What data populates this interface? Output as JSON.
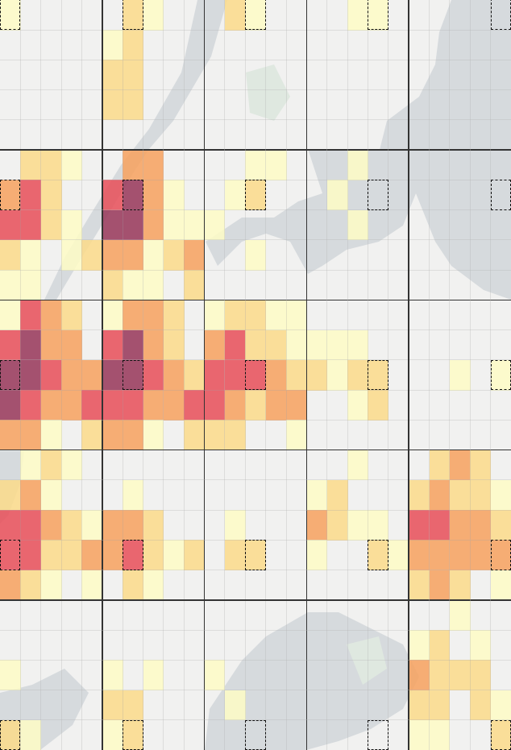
{
  "map": {
    "grid_size": 25,
    "block_size": 5,
    "palette": {
      "0": "transparent",
      "1": "#fdfbc6",
      "2": "#fbdb8c",
      "3": "#f6a362",
      "4": "#e7525c",
      "5": "#983a5c"
    },
    "land_color": "#f1f1f0",
    "water_color": "#d6dadd",
    "highlighted_cells": [
      [
        0,
        0
      ],
      [
        6,
        6
      ],
      [
        12,
        12
      ],
      [
        18,
        18
      ],
      [
        24,
        24
      ],
      [
        0,
        6
      ],
      [
        0,
        12
      ],
      [
        0,
        18
      ],
      [
        0,
        24
      ],
      [
        6,
        0
      ],
      [
        6,
        12
      ],
      [
        6,
        18
      ],
      [
        6,
        24
      ],
      [
        12,
        0
      ],
      [
        12,
        6
      ],
      [
        12,
        18
      ],
      [
        12,
        24
      ],
      [
        18,
        0
      ],
      [
        18,
        6
      ],
      [
        18,
        12
      ],
      [
        18,
        24
      ],
      [
        24,
        0
      ],
      [
        24,
        6
      ],
      [
        24,
        12
      ],
      [
        24,
        18
      ]
    ],
    "intensity": [
      [
        1,
        0,
        0,
        0,
        0,
        0,
        2,
        1,
        0,
        0,
        0,
        2,
        1,
        0,
        0,
        0,
        0,
        1,
        1,
        0,
        0,
        0,
        0,
        0,
        0
      ],
      [
        0,
        0,
        0,
        0,
        0,
        1,
        2,
        0,
        0,
        0,
        0,
        0,
        0,
        0,
        0,
        0,
        0,
        0,
        0,
        0,
        0,
        0,
        0,
        0,
        0
      ],
      [
        0,
        0,
        0,
        0,
        0,
        2,
        2,
        0,
        0,
        0,
        0,
        0,
        0,
        0,
        0,
        0,
        0,
        0,
        0,
        0,
        0,
        0,
        0,
        0,
        0
      ],
      [
        0,
        0,
        0,
        0,
        0,
        2,
        2,
        0,
        0,
        0,
        0,
        0,
        0,
        0,
        0,
        0,
        0,
        0,
        0,
        0,
        0,
        0,
        0,
        0,
        0
      ],
      [
        0,
        0,
        0,
        0,
        0,
        0,
        0,
        0,
        0,
        0,
        0,
        0,
        0,
        0,
        0,
        0,
        0,
        0,
        0,
        0,
        0,
        0,
        0,
        0,
        0
      ],
      [
        0,
        2,
        2,
        1,
        0,
        0,
        3,
        3,
        0,
        0,
        0,
        0,
        1,
        1,
        0,
        0,
        0,
        1,
        0,
        0,
        0,
        0,
        0,
        0,
        0
      ],
      [
        3,
        4,
        2,
        0,
        0,
        4,
        5,
        3,
        1,
        0,
        0,
        1,
        2,
        0,
        0,
        0,
        1,
        0,
        0,
        0,
        0,
        0,
        0,
        0,
        0
      ],
      [
        4,
        4,
        2,
        1,
        0,
        5,
        5,
        3,
        1,
        1,
        1,
        0,
        0,
        0,
        0,
        0,
        0,
        1,
        0,
        0,
        0,
        0,
        0,
        0,
        0
      ],
      [
        2,
        1,
        0,
        1,
        2,
        3,
        3,
        1,
        2,
        3,
        0,
        0,
        1,
        0,
        0,
        0,
        0,
        0,
        0,
        0,
        0,
        0,
        0,
        0,
        0
      ],
      [
        1,
        1,
        0,
        0,
        0,
        2,
        1,
        1,
        0,
        2,
        0,
        0,
        0,
        0,
        0,
        0,
        0,
        0,
        0,
        0,
        0,
        0,
        0,
        0,
        0
      ],
      [
        1,
        4,
        3,
        2,
        0,
        1,
        3,
        3,
        2,
        0,
        1,
        2,
        2,
        1,
        1,
        0,
        0,
        0,
        0,
        0,
        0,
        0,
        0,
        0,
        0
      ],
      [
        4,
        5,
        3,
        3,
        0,
        4,
        5,
        3,
        2,
        0,
        3,
        4,
        2,
        2,
        1,
        1,
        1,
        1,
        0,
        0,
        0,
        0,
        0,
        0,
        0
      ],
      [
        5,
        5,
        4,
        3,
        3,
        5,
        5,
        4,
        3,
        2,
        4,
        4,
        4,
        3,
        2,
        2,
        1,
        2,
        2,
        0,
        0,
        0,
        1,
        0,
        1
      ],
      [
        5,
        4,
        3,
        3,
        4,
        4,
        4,
        3,
        3,
        4,
        4,
        3,
        2,
        3,
        3,
        0,
        0,
        1,
        2,
        0,
        0,
        0,
        0,
        0,
        0
      ],
      [
        3,
        3,
        1,
        0,
        2,
        3,
        3,
        1,
        0,
        2,
        2,
        2,
        0,
        0,
        1,
        0,
        0,
        0,
        0,
        0,
        0,
        0,
        0,
        0,
        0
      ],
      [
        0,
        1,
        2,
        1,
        0,
        0,
        0,
        0,
        0,
        0,
        0,
        0,
        0,
        0,
        0,
        0,
        0,
        1,
        0,
        0,
        0,
        2,
        3,
        2,
        0
      ],
      [
        2,
        3,
        1,
        0,
        0,
        0,
        1,
        0,
        0,
        0,
        0,
        0,
        0,
        0,
        0,
        1,
        2,
        0,
        0,
        0,
        2,
        3,
        2,
        2,
        1
      ],
      [
        4,
        4,
        3,
        2,
        1,
        3,
        3,
        2,
        0,
        0,
        0,
        1,
        0,
        0,
        0,
        3,
        2,
        1,
        1,
        0,
        4,
        4,
        3,
        3,
        2
      ],
      [
        4,
        4,
        2,
        2,
        3,
        3,
        4,
        2,
        1,
        2,
        0,
        2,
        2,
        0,
        0,
        1,
        0,
        0,
        2,
        1,
        3,
        3,
        3,
        3,
        3
      ],
      [
        3,
        2,
        1,
        0,
        1,
        0,
        2,
        1,
        0,
        0,
        0,
        0,
        0,
        0,
        0,
        0,
        0,
        0,
        0,
        0,
        2,
        3,
        2,
        0,
        1
      ],
      [
        0,
        0,
        0,
        0,
        0,
        0,
        0,
        0,
        0,
        0,
        0,
        0,
        0,
        0,
        0,
        0,
        0,
        0,
        0,
        0,
        0,
        0,
        1,
        0,
        0
      ],
      [
        0,
        0,
        0,
        0,
        0,
        0,
        0,
        0,
        0,
        0,
        0,
        0,
        0,
        0,
        0,
        0,
        0,
        0,
        0,
        0,
        1,
        2,
        0,
        1,
        0
      ],
      [
        1,
        0,
        0,
        0,
        0,
        1,
        0,
        1,
        0,
        0,
        1,
        0,
        0,
        0,
        0,
        0,
        0,
        0,
        0,
        0,
        3,
        2,
        2,
        2,
        0
      ],
      [
        0,
        0,
        0,
        0,
        0,
        2,
        2,
        0,
        0,
        0,
        0,
        1,
        0,
        0,
        0,
        0,
        0,
        0,
        0,
        0,
        2,
        2,
        0,
        2,
        1
      ],
      [
        2,
        1,
        0,
        0,
        0,
        1,
        2,
        0,
        0,
        0,
        0,
        0,
        0,
        0,
        0,
        0,
        0,
        0,
        0,
        0,
        1,
        1,
        0,
        0,
        2
      ]
    ]
  }
}
